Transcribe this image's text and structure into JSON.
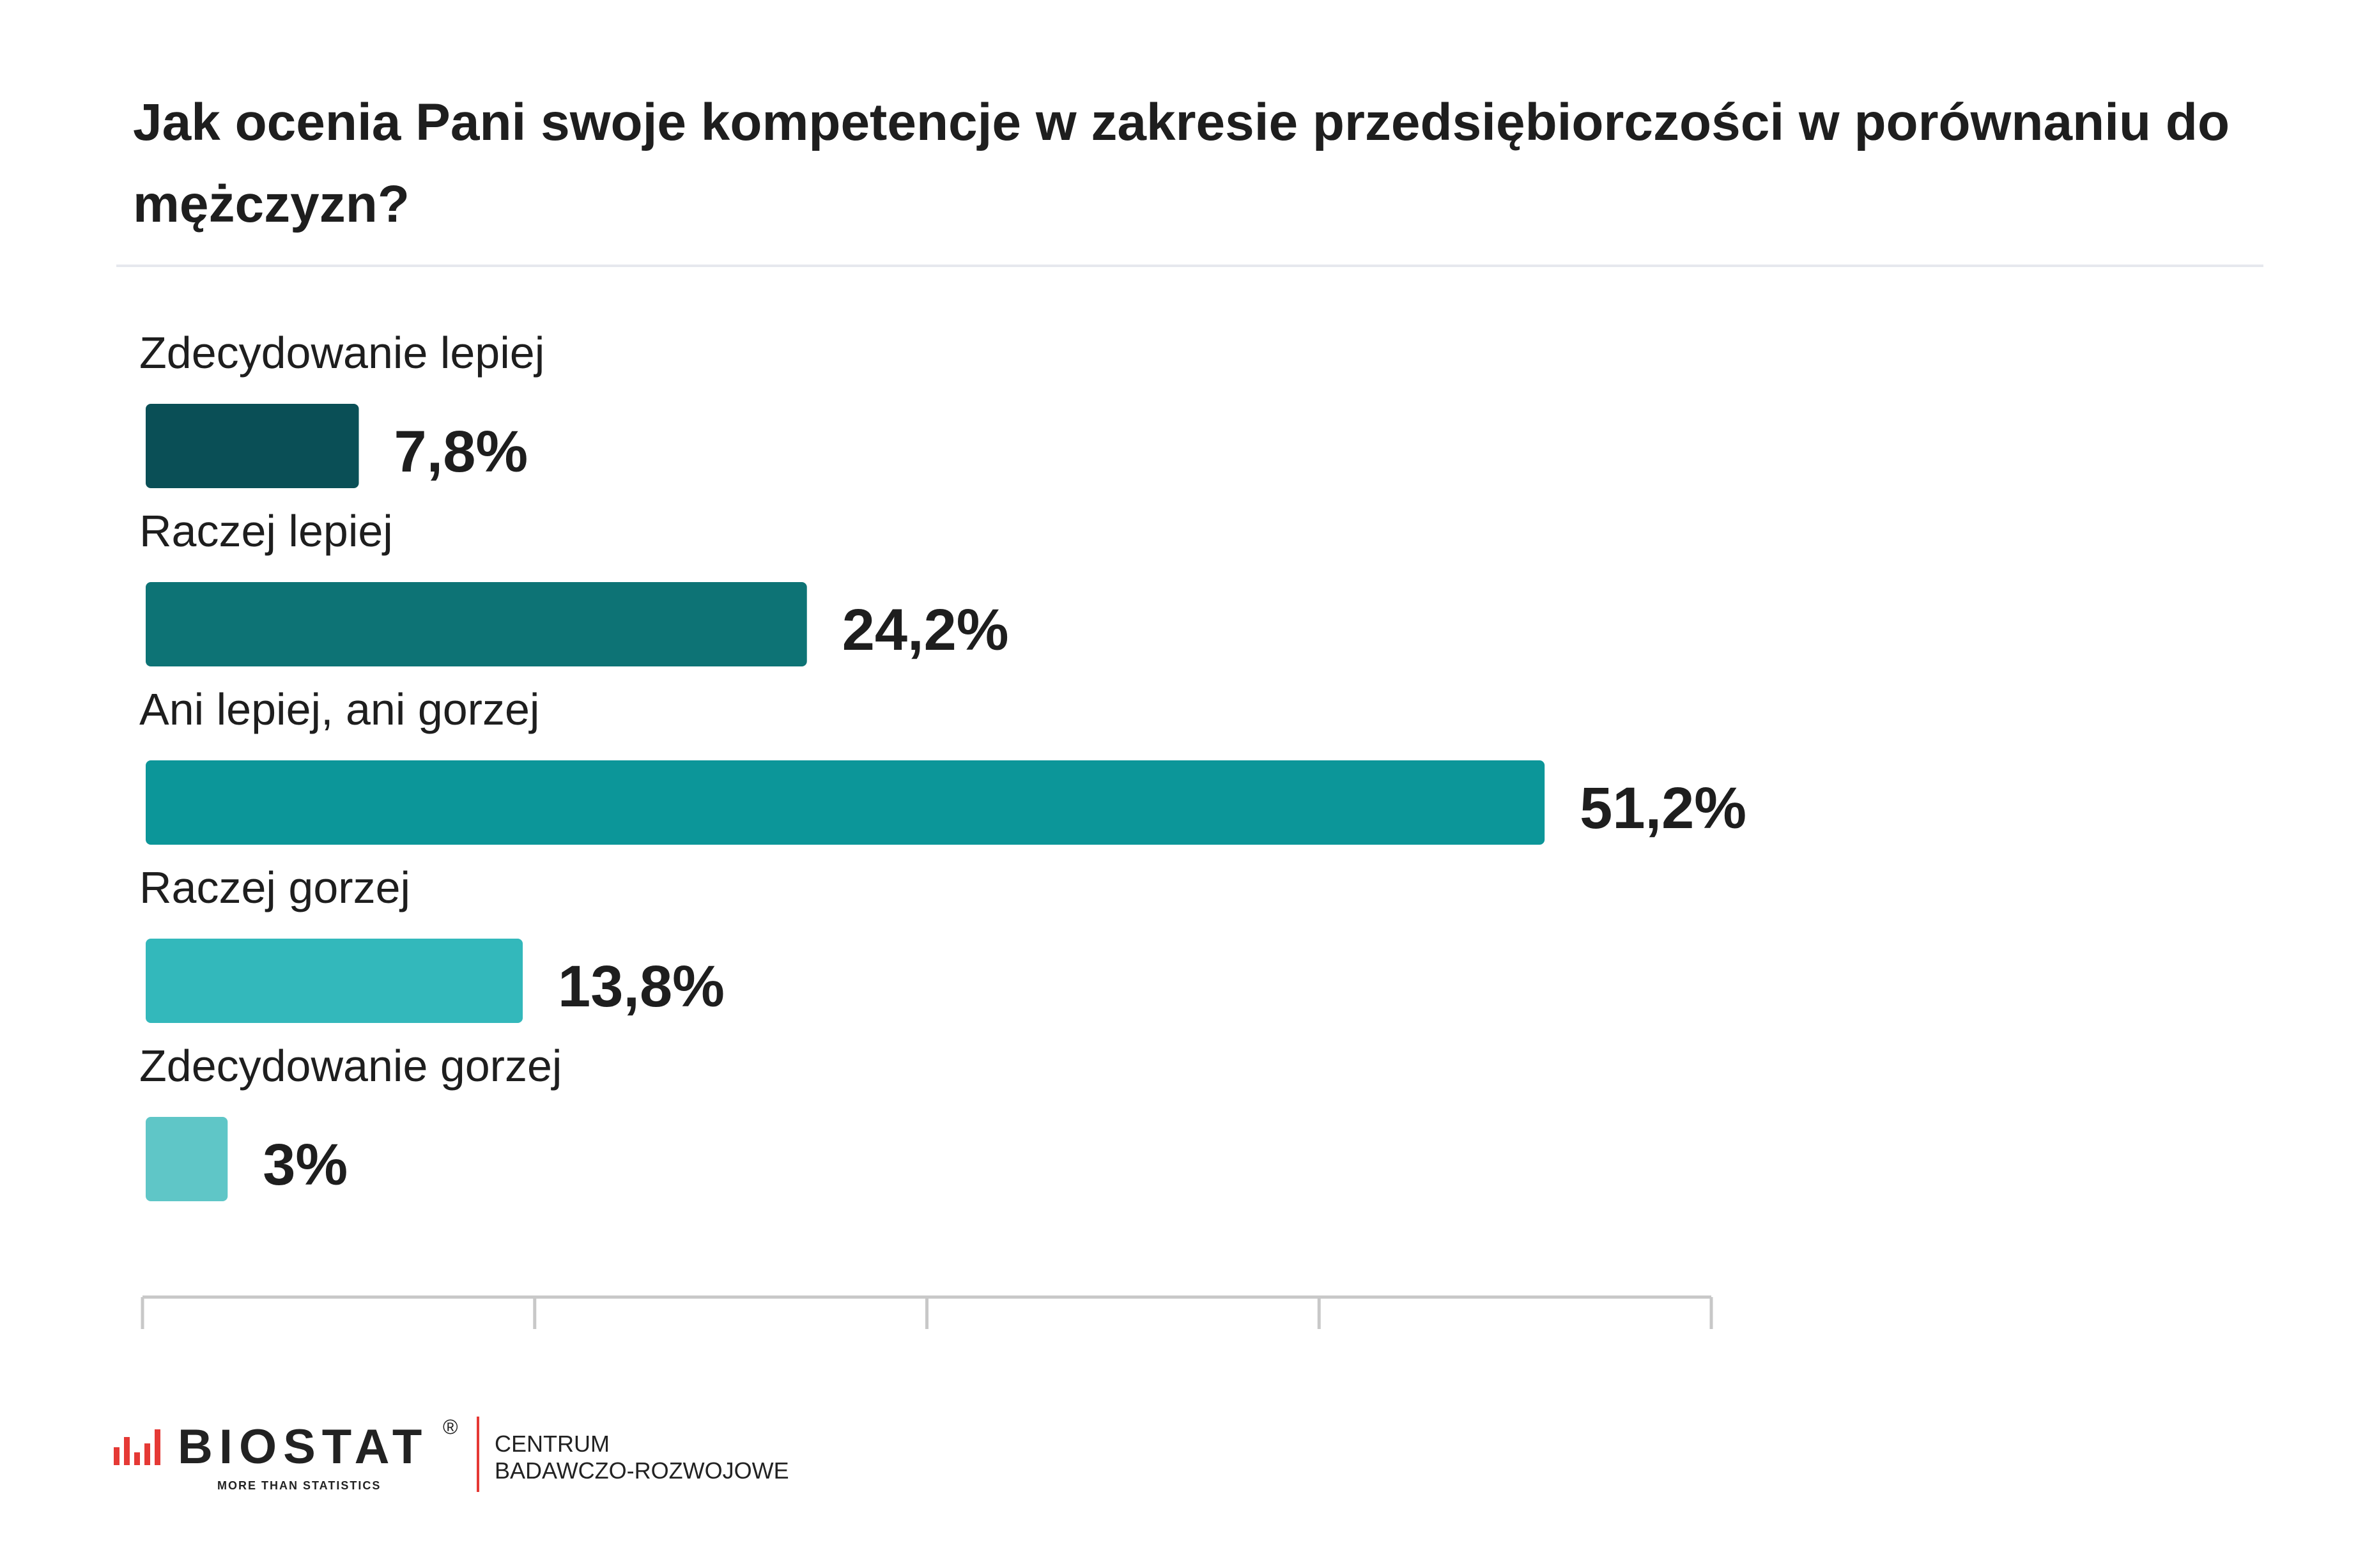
{
  "chart_data": {
    "type": "bar",
    "orientation": "horizontal",
    "title": "Jak ocenia Pani swoje kompetencje w zakresie przedsiębiorczości w porównaniu do mężczyzn?",
    "categories": [
      "Zdecydowanie lepiej",
      "Raczej lepiej",
      "Ani lepiej, ani gorzej",
      "Raczej gorzej",
      "Zdecydowanie gorzej"
    ],
    "values": [
      7.8,
      24.2,
      51.2,
      13.8,
      3
    ],
    "value_labels": [
      "7,8%",
      "24,2%",
      "51,2%",
      "13,8%",
      "3%"
    ],
    "colors": [
      "#0a4f56",
      "#0d7375",
      "#0c9699",
      "#33b8bb",
      "#5fc6c7"
    ],
    "xlim": [
      0,
      57.3
    ],
    "xlabel": "",
    "ylabel": "",
    "grid": false,
    "legend": "none"
  },
  "footer": {
    "brand": "BIOSTAT",
    "registered": "®",
    "tagline": "MORE THAN STATISTICS",
    "org_line1": "CENTRUM",
    "org_line2": "BADAWCZO-ROZWOJOWE",
    "accent_color": "#e53935"
  }
}
